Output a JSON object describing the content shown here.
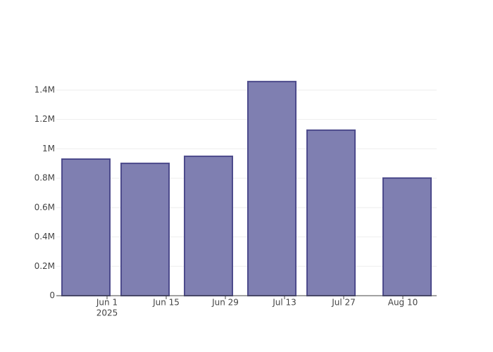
{
  "chart_data": {
    "type": "bar",
    "x": [
      "2025-05-27",
      "2025-06-10",
      "2025-06-25",
      "2025-07-10",
      "2025-07-24",
      "2025-08-11"
    ],
    "values": [
      930000,
      901000,
      949000,
      1458000,
      1127000,
      801000
    ],
    "color": "#7f7fb1",
    "edge_color": "#4d4b8c",
    "xlim": [
      "2025-05-20",
      "2025-08-18"
    ],
    "xticks": [
      {
        "value": "2025-06-01",
        "label": "Jun 1",
        "sublabel": "2025"
      },
      {
        "value": "2025-06-15",
        "label": "Jun 15"
      },
      {
        "value": "2025-06-29",
        "label": "Jun 29"
      },
      {
        "value": "2025-07-13",
        "label": "Jul 13"
      },
      {
        "value": "2025-07-27",
        "label": "Jul 27"
      },
      {
        "value": "2025-08-10",
        "label": "Aug 10"
      }
    ],
    "ylim": [
      0,
      1534000
    ],
    "yticks": [
      0,
      {
        "value": 200000,
        "label": "0.2M"
      },
      {
        "value": 400000,
        "label": "0.4M"
      },
      {
        "value": 600000,
        "label": "0.6M"
      },
      {
        "value": 800000,
        "label": "0.8M"
      },
      {
        "value": 1000000,
        "label": "1M"
      },
      {
        "value": 1200000,
        "label": "1.2M"
      },
      {
        "value": 1400000,
        "label": "1.4M"
      }
    ],
    "grid": true
  }
}
